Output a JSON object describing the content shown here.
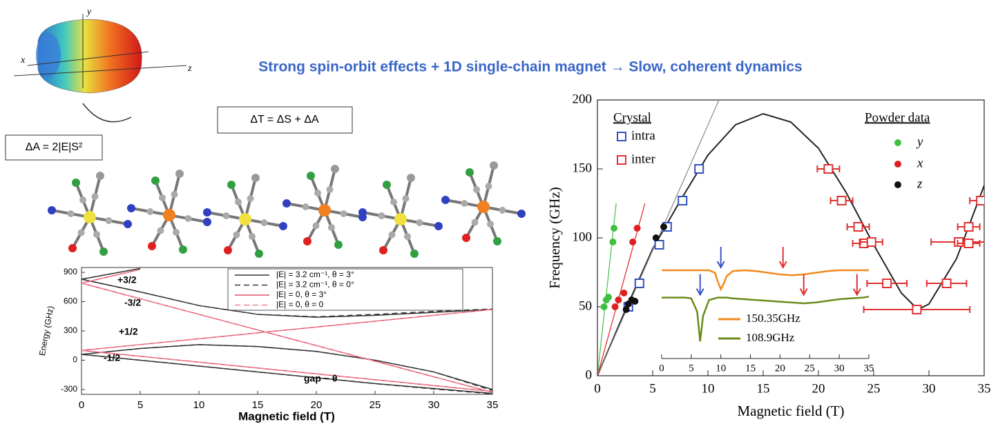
{
  "title": "Strong spin-orbit effects + 1D single-chain magnet → Slow, coherent dynamics",
  "molecule": {
    "axes": [
      "x",
      "y",
      "z"
    ],
    "equations": [
      "ΔA = 2|E|S²",
      "ΔT = ΔS + ΔA"
    ]
  },
  "chart_data": [
    {
      "type": "line",
      "xlabel": "Magnetic field (T)",
      "ylabel": "Energy (GHz)",
      "x": [
        0,
        5,
        10,
        15,
        20,
        25,
        30,
        35
      ],
      "xlim": [
        0,
        35
      ],
      "ylim": [
        -350,
        950
      ],
      "xticks": [
        0,
        5,
        10,
        15,
        20,
        25,
        30,
        35
      ],
      "yticks": [
        -300,
        0,
        300,
        600,
        900
      ],
      "annotations": [
        "+3/2",
        "-3/2",
        "+1/2",
        "-1/2",
        "gap ~ θ"
      ],
      "series": [
        {
          "name": "|E| = 3.2 cm⁻¹, θ = 3°",
          "color": "#333333",
          "dash": false,
          "levels": [
            [
              830,
              940,
              null,
              null,
              null,
              null,
              null,
              null
            ],
            [
              830,
              700,
              560,
              470,
              440,
              460,
              490,
              520
            ],
            [
              60,
              120,
              160,
              140,
              90,
              0,
              -120,
              -300
            ],
            [
              60,
              0,
              -60,
              -120,
              -180,
              -240,
              -290,
              -340
            ]
          ]
        },
        {
          "name": "|E| = 3.2 cm⁻¹, θ = 0°",
          "color": "#333333",
          "dash": true,
          "levels": [
            [
              830,
              940,
              null,
              null,
              null,
              null,
              null,
              null
            ],
            [
              830,
              700,
              560,
              470,
              445,
              470,
              500,
              525
            ],
            [
              60,
              120,
              160,
              140,
              90,
              0,
              -120,
              -310
            ],
            [
              60,
              0,
              -60,
              -120,
              -180,
              -240,
              -295,
              -345
            ]
          ]
        },
        {
          "name": "|E| = 0, θ = 3°",
          "color": "#e0506a",
          "dash": false,
          "levels": [
            [
              790,
              930,
              null,
              null,
              null,
              null,
              null,
              null
            ],
            [
              790,
              630,
              470,
              310,
              150,
              -10,
              -170,
              -330
            ],
            [
              100,
              160,
              220,
              280,
              340,
              400,
              460,
              520
            ],
            [
              100,
              40,
              -20,
              -80,
              -140,
              -200,
              -260,
              -320
            ]
          ]
        },
        {
          "name": "|E| = 0, θ = 0",
          "color": "#f08090",
          "dash": true,
          "levels": [
            [
              790,
              930,
              null,
              null,
              null,
              null,
              null,
              null
            ],
            [
              790,
              630,
              470,
              310,
              150,
              -10,
              -170,
              -330
            ],
            [
              100,
              160,
              220,
              280,
              340,
              400,
              460,
              520
            ],
            [
              100,
              40,
              -20,
              -80,
              -140,
              -200,
              -260,
              -320
            ]
          ]
        }
      ]
    },
    {
      "type": "scatter",
      "xlabel": "Magnetic field (T)",
      "ylabel": "Frequency (GHz)",
      "xlim": [
        0,
        35
      ],
      "ylim": [
        0,
        200
      ],
      "xticks": [
        0,
        5,
        10,
        15,
        20,
        25,
        30,
        35
      ],
      "yticks": [
        0,
        50,
        100,
        150,
        200
      ],
      "legend_titles": [
        "Crystal",
        "Powder data"
      ],
      "series": [
        {
          "name": "intra",
          "color": "#2f4fbf",
          "marker": "square",
          "x": [
            2.8,
            3.8,
            5.6,
            6.3,
            7.7,
            9.2
          ],
          "values": [
            50,
            67,
            95,
            108,
            127,
            150
          ]
        },
        {
          "name": "inter",
          "color": "#e03030",
          "marker": "square",
          "x": [
            20.9,
            22.1,
            23.6,
            24.1,
            24.8,
            26.2,
            28.9,
            31.6,
            32.7,
            33.6,
            33.6,
            34.7
          ],
          "values": [
            150,
            127,
            108,
            96,
            97,
            67,
            48,
            67,
            97,
            108,
            96,
            127
          ],
          "xerr": [
            1,
            1,
            1,
            1,
            1,
            1.8,
            4.8,
            1.8,
            2.5,
            1,
            1,
            1
          ]
        },
        {
          "name": "y",
          "color": "#40c040",
          "marker": "dot",
          "x": [
            0.6,
            0.8,
            1.0,
            1.4,
            1.5
          ],
          "values": [
            50,
            55,
            57,
            97,
            107
          ]
        },
        {
          "name": "x",
          "color": "#e02020",
          "marker": "dot",
          "x": [
            1.6,
            1.9,
            2.4,
            3.2,
            3.6
          ],
          "values": [
            50,
            55,
            60,
            97,
            107
          ]
        },
        {
          "name": "z",
          "color": "#111111",
          "marker": "dot",
          "x": [
            2.6,
            2.8,
            3.1,
            3.4,
            5.3,
            6.0
          ],
          "values": [
            48,
            52,
            55,
            54,
            100,
            108
          ]
        }
      ],
      "lines": [
        {
          "color": "#222222",
          "x": [
            0,
            2.5,
            5,
            7.5,
            10,
            12.5,
            15,
            17.5,
            20,
            22.5,
            25,
            27.5,
            29,
            30,
            32.5,
            35
          ],
          "values": [
            0,
            47,
            92,
            127,
            160,
            182,
            190,
            184,
            165,
            133,
            95,
            60,
            48,
            52,
            85,
            138
          ]
        },
        {
          "color": "#888888",
          "x": [
            0,
            11
          ],
          "values": [
            0,
            200
          ]
        },
        {
          "color": "#40c040",
          "x": [
            0,
            1.7
          ],
          "values": [
            0,
            125
          ]
        },
        {
          "color": "#e02020",
          "x": [
            0,
            4.3
          ],
          "values": [
            0,
            125
          ]
        }
      ]
    },
    {
      "type": "line",
      "xlim": [
        0,
        35
      ],
      "ylim": [
        0,
        10
      ],
      "xticks": [
        0,
        5,
        10,
        15,
        20,
        25,
        30,
        35
      ],
      "x": [
        0,
        2,
        4,
        5,
        6,
        6.5,
        7,
        8,
        9,
        9.5,
        10,
        10.5,
        11,
        12,
        14,
        16,
        18,
        20,
        22,
        24,
        26,
        28,
        30,
        32,
        34,
        35
      ],
      "series": [
        {
          "name": "150.35GHz",
          "color": "#f08a1c",
          "values": [
            9,
            9,
            9,
            9,
            9,
            9,
            9,
            9,
            8.7,
            7.6,
            6.7,
            7.4,
            8.3,
            8.9,
            9,
            8.9,
            8.7,
            8.5,
            8.4,
            8.5,
            8.7,
            8.9,
            9,
            9,
            9,
            9
          ]
        },
        {
          "name": "108.9GHz",
          "color": "#6a8a1a",
          "values": [
            5.7,
            5.7,
            5.7,
            5.6,
            4.0,
            0.4,
            3.5,
            5.4,
            5.6,
            5.7,
            5.7,
            5.7,
            5.7,
            5.6,
            5.5,
            5.4,
            5.3,
            5.2,
            5.1,
            5.0,
            5.1,
            5.3,
            5.5,
            5.6,
            5.7,
            5.8
          ]
        }
      ],
      "arrows": [
        {
          "x": 6.5,
          "series": 1,
          "color": "#3a52c8"
        },
        {
          "x": 10,
          "series": 0,
          "color": "#3a52c8"
        },
        {
          "x": 20.5,
          "series": 0,
          "color": "#e03030"
        },
        {
          "x": 24,
          "series": 1,
          "color": "#e03030"
        },
        {
          "x": 33,
          "series": 1,
          "color": "#e03030"
        }
      ]
    }
  ]
}
